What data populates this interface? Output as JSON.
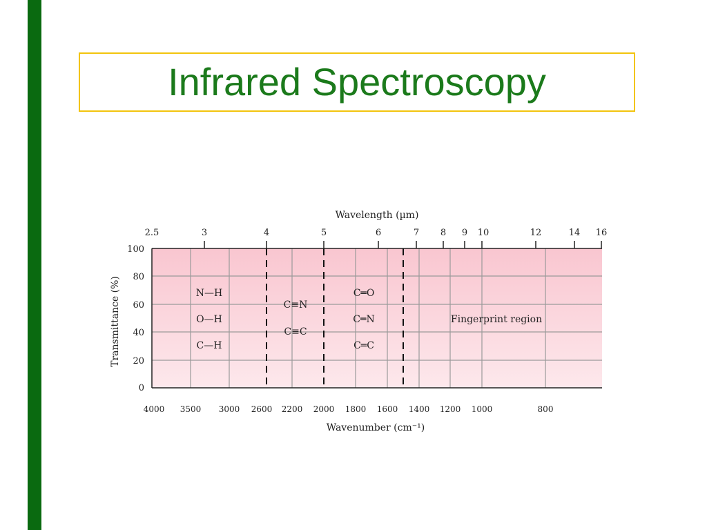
{
  "title": "Infrared Spectroscopy",
  "colors": {
    "sidebar": "#0a6a10",
    "title_border": "#f2c40c",
    "title_text": "#1b7a1b",
    "plot_fill": "#fbd9e0"
  },
  "figure": {
    "top_axis_label": "Wavelength (µm)",
    "top_ticks": [
      "2.5",
      "3",
      "4",
      "5",
      "6",
      "7",
      "8",
      "9",
      "10",
      "12",
      "14",
      "16"
    ],
    "bottom_axis_label": "Wavenumber (cm⁻¹)",
    "bottom_ticks": [
      "4000",
      "3500",
      "3000",
      "2600",
      "2200",
      "2000",
      "1800",
      "1600",
      "1400",
      "1200",
      "1000",
      "800"
    ],
    "y_axis_label": "Transmittance (%)",
    "y_ticks": [
      "100",
      "80",
      "60",
      "40",
      "20",
      "0"
    ],
    "bonds": {
      "single": [
        "N—H",
        "O—H",
        "C—H"
      ],
      "triple": [
        "C≡N",
        "C≡C"
      ],
      "double": [
        "C═O",
        "C═N",
        "C═C"
      ]
    },
    "fingerprint_label": "Fingerprint region"
  }
}
